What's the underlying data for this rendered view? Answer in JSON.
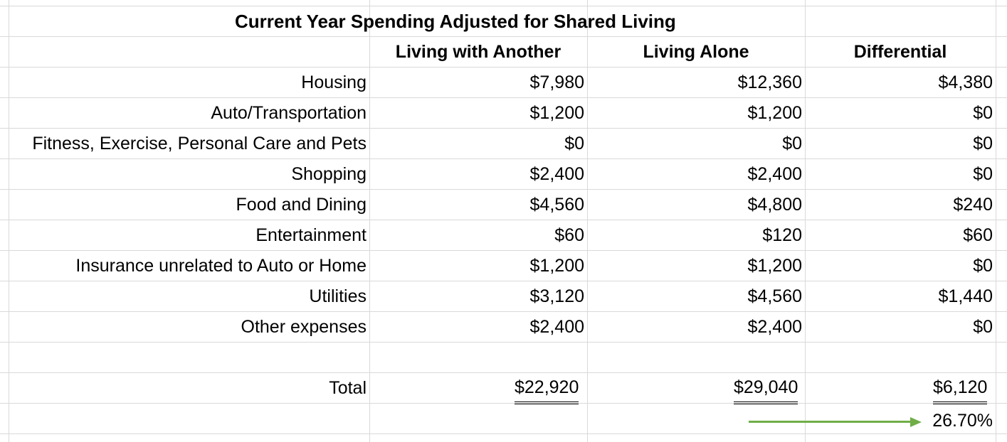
{
  "title": "Current Year Spending Adjusted for Shared Living",
  "headers": {
    "with_another": "Living with Another",
    "alone": "Living Alone",
    "differential": "Differential"
  },
  "rows": [
    {
      "label": "Housing",
      "with_another": "$7,980",
      "alone": "$12,360",
      "differential": "$4,380"
    },
    {
      "label": "Auto/Transportation",
      "with_another": "$1,200",
      "alone": "$1,200",
      "differential": "$0"
    },
    {
      "label": "Fitness, Exercise, Personal Care and Pets",
      "with_another": "$0",
      "alone": "$0",
      "differential": "$0"
    },
    {
      "label": "Shopping",
      "with_another": "$2,400",
      "alone": "$2,400",
      "differential": "$0"
    },
    {
      "label": "Food and Dining",
      "with_another": "$4,560",
      "alone": "$4,800",
      "differential": "$240"
    },
    {
      "label": "Entertainment",
      "with_another": "$60",
      "alone": "$120",
      "differential": "$60"
    },
    {
      "label": "Insurance unrelated to Auto or Home",
      "with_another": "$1,200",
      "alone": "$1,200",
      "differential": "$0"
    },
    {
      "label": "Utilities",
      "with_another": "$3,120",
      "alone": "$4,560",
      "differential": "$1,440"
    },
    {
      "label": "Other expenses",
      "with_another": "$2,400",
      "alone": "$2,400",
      "differential": "$0"
    }
  ],
  "total": {
    "label": "Total",
    "with_another": "$22,920",
    "alone": "$29,040",
    "differential": "$6,120"
  },
  "percent": "26.70%",
  "colors": {
    "arrow": "#70ad47",
    "gridline": "#d9d9d9"
  }
}
